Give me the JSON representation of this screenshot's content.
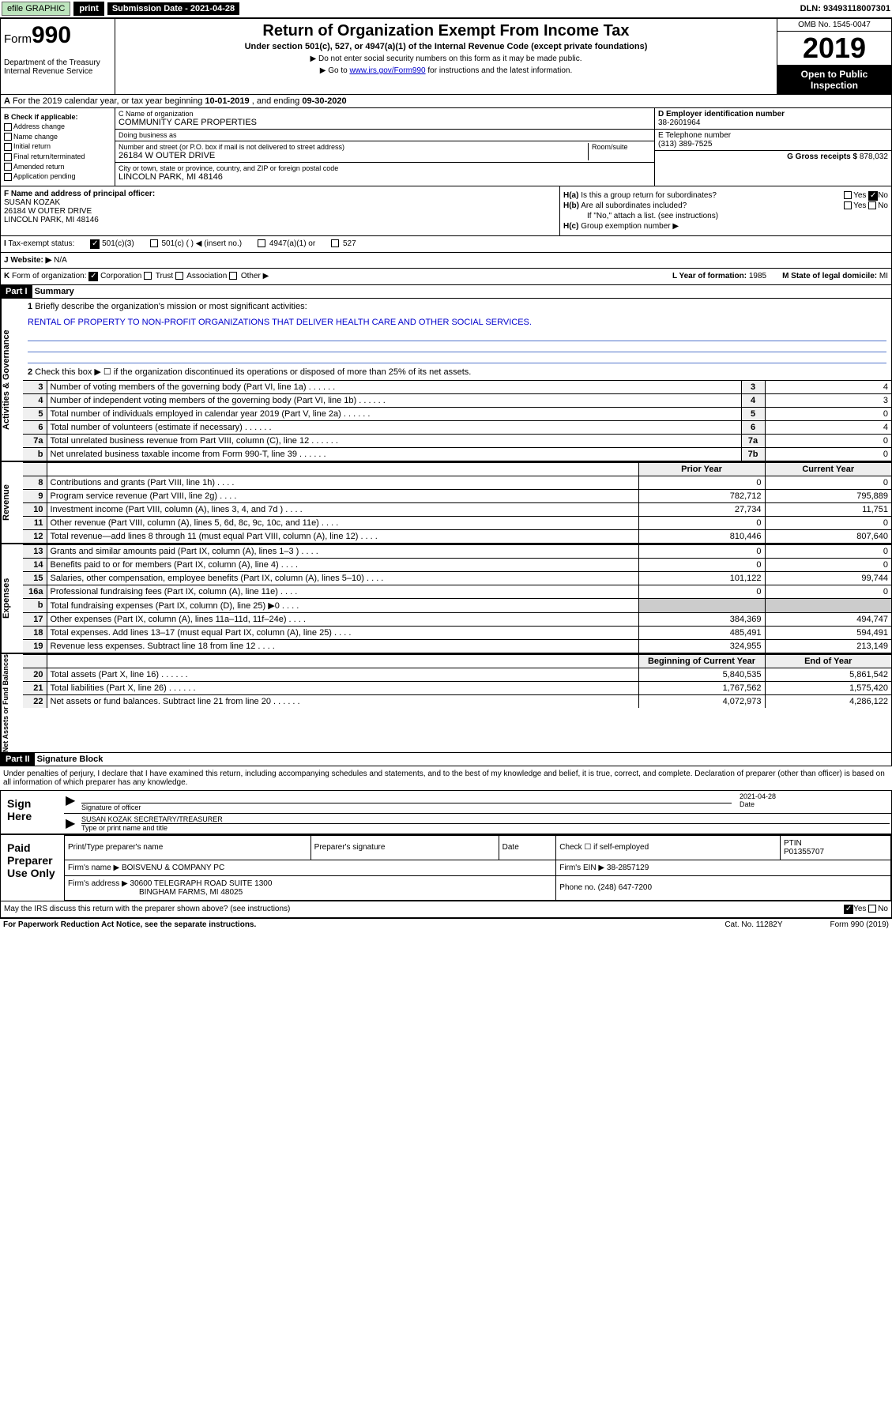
{
  "topbar": {
    "efile": "efile GRAPHIC",
    "print": "print",
    "sub_date_label": "Submission Date - 2021-04-28",
    "dln": "DLN: 93493118007301"
  },
  "header": {
    "form_prefix": "Form",
    "form_num": "990",
    "dept": "Department of the Treasury\nInternal Revenue Service",
    "title": "Return of Organization Exempt From Income Tax",
    "subtitle": "Under section 501(c), 527, or 4947(a)(1) of the Internal Revenue Code (except private foundations)",
    "note1": "▶ Do not enter social security numbers on this form as it may be made public.",
    "note2_a": "▶ Go to ",
    "note2_link": "www.irs.gov/Form990",
    "note2_b": " for instructions and the latest information.",
    "omb": "OMB No. 1545-0047",
    "year": "2019",
    "open_pub": "Open to Public Inspection"
  },
  "row_a": {
    "label_a": "A",
    "text": " For the 2019 calendar year, or tax year beginning ",
    "begin": "10-01-2019",
    "mid": " , and ending ",
    "end": "09-30-2020"
  },
  "col_b": {
    "label": "B Check if applicable:",
    "items": [
      "Address change",
      "Name change",
      "Initial return",
      "Final return/terminated",
      "Amended return",
      "Application pending"
    ]
  },
  "col_c": {
    "name_label": "C Name of organization",
    "name": "COMMUNITY CARE PROPERTIES",
    "dba_label": "Doing business as",
    "addr_label": "Number and street (or P.O. box if mail is not delivered to street address)",
    "room_label": "Room/suite",
    "addr": "26184 W OUTER DRIVE",
    "city_label": "City or town, state or province, country, and ZIP or foreign postal code",
    "city": "LINCOLN PARK, MI  48146"
  },
  "col_de": {
    "d_label": "D Employer identification number",
    "d_val": "38-2601964",
    "e_label": "E Telephone number",
    "e_val": "(313) 389-7525",
    "g_label": "G Gross receipts $ ",
    "g_val": "878,032"
  },
  "col_f": {
    "label": "F Name and address of principal officer:",
    "name": "SUSAN KOZAK",
    "addr1": "26184 W OUTER DRIVE",
    "addr2": "LINCOLN PARK, MI  48146"
  },
  "col_h": {
    "ha_label": "H(a)",
    "ha_text": "Is this a group return for subordinates?",
    "ha_yes": "Yes",
    "ha_no": "No",
    "hb_label": "H(b)",
    "hb_text": "Are all subordinates included?",
    "hb_yes": "Yes",
    "hb_no": "No",
    "hb_note": "If \"No,\" attach a list. (see instructions)",
    "hc_label": "H(c)",
    "hc_text": "Group exemption number ▶"
  },
  "row_tax": {
    "i": "I",
    "label": "Tax-exempt status:",
    "opt1": "501(c)(3)",
    "opt2": "501(c) (   ) ◀ (insert no.)",
    "opt3": "4947(a)(1) or",
    "opt4": "527"
  },
  "row_j": {
    "j": "J",
    "label": "Website: ▶",
    "val": "N/A"
  },
  "row_k": {
    "k": "K",
    "label": "Form of organization:",
    "corp": "Corporation",
    "trust": "Trust",
    "assoc": "Association",
    "other": "Other ▶",
    "l_label": "L Year of formation: ",
    "l_val": "1985",
    "m_label": "M State of legal domicile: ",
    "m_val": "MI"
  },
  "part1": {
    "hdr": "Part I",
    "title": "Summary",
    "vtab1": "Activities & Governance",
    "vtab2": "Revenue",
    "vtab3": "Expenses",
    "vtab4": "Net Assets or Fund Balances",
    "q1": "Briefly describe the organization's mission or most significant activities:",
    "q1_val": "RENTAL OF PROPERTY TO NON-PROFIT ORGANIZATIONS THAT DELIVER HEALTH CARE AND OTHER SOCIAL SERVICES.",
    "q2": "Check this box ▶ ☐ if the organization discontinued its operations or disposed of more than 25% of its net assets.",
    "rows": [
      {
        "n": "3",
        "t": "Number of voting members of the governing body (Part VI, line 1a)",
        "b": "3",
        "v": "4"
      },
      {
        "n": "4",
        "t": "Number of independent voting members of the governing body (Part VI, line 1b)",
        "b": "4",
        "v": "3"
      },
      {
        "n": "5",
        "t": "Total number of individuals employed in calendar year 2019 (Part V, line 2a)",
        "b": "5",
        "v": "0"
      },
      {
        "n": "6",
        "t": "Total number of volunteers (estimate if necessary)",
        "b": "6",
        "v": "4"
      },
      {
        "n": "7a",
        "t": "Total unrelated business revenue from Part VIII, column (C), line 12",
        "b": "7a",
        "v": "0"
      },
      {
        "n": "b",
        "t": "Net unrelated business taxable income from Form 990-T, line 39",
        "b": "7b",
        "v": "0"
      }
    ],
    "rev_hdr_prior": "Prior Year",
    "rev_hdr_curr": "Current Year",
    "rev_rows": [
      {
        "n": "8",
        "t": "Contributions and grants (Part VIII, line 1h)",
        "p": "0",
        "c": "0"
      },
      {
        "n": "9",
        "t": "Program service revenue (Part VIII, line 2g)",
        "p": "782,712",
        "c": "795,889"
      },
      {
        "n": "10",
        "t": "Investment income (Part VIII, column (A), lines 3, 4, and 7d )",
        "p": "27,734",
        "c": "11,751"
      },
      {
        "n": "11",
        "t": "Other revenue (Part VIII, column (A), lines 5, 6d, 8c, 9c, 10c, and 11e)",
        "p": "0",
        "c": "0"
      },
      {
        "n": "12",
        "t": "Total revenue—add lines 8 through 11 (must equal Part VIII, column (A), line 12)",
        "p": "810,446",
        "c": "807,640"
      }
    ],
    "exp_rows": [
      {
        "n": "13",
        "t": "Grants and similar amounts paid (Part IX, column (A), lines 1–3 )",
        "p": "0",
        "c": "0"
      },
      {
        "n": "14",
        "t": "Benefits paid to or for members (Part IX, column (A), line 4)",
        "p": "0",
        "c": "0"
      },
      {
        "n": "15",
        "t": "Salaries, other compensation, employee benefits (Part IX, column (A), lines 5–10)",
        "p": "101,122",
        "c": "99,744"
      },
      {
        "n": "16a",
        "t": "Professional fundraising fees (Part IX, column (A), line 11e)",
        "p": "0",
        "c": "0"
      },
      {
        "n": "b",
        "t": "Total fundraising expenses (Part IX, column (D), line 25) ▶0",
        "p": "",
        "c": "",
        "gray": true
      },
      {
        "n": "17",
        "t": "Other expenses (Part IX, column (A), lines 11a–11d, 11f–24e)",
        "p": "384,369",
        "c": "494,747"
      },
      {
        "n": "18",
        "t": "Total expenses. Add lines 13–17 (must equal Part IX, column (A), line 25)",
        "p": "485,491",
        "c": "594,491"
      },
      {
        "n": "19",
        "t": "Revenue less expenses. Subtract line 18 from line 12",
        "p": "324,955",
        "c": "213,149"
      }
    ],
    "net_hdr_begin": "Beginning of Current Year",
    "net_hdr_end": "End of Year",
    "net_rows": [
      {
        "n": "20",
        "t": "Total assets (Part X, line 16)",
        "p": "5,840,535",
        "c": "5,861,542"
      },
      {
        "n": "21",
        "t": "Total liabilities (Part X, line 26)",
        "p": "1,767,562",
        "c": "1,575,420"
      },
      {
        "n": "22",
        "t": "Net assets or fund balances. Subtract line 21 from line 20",
        "p": "4,072,973",
        "c": "4,286,122"
      }
    ]
  },
  "part2": {
    "hdr": "Part II",
    "title": "Signature Block",
    "text": "Under penalties of perjury, I declare that I have examined this return, including accompanying schedules and statements, and to the best of my knowledge and belief, it is true, correct, and complete. Declaration of preparer (other than officer) is based on all information of which preparer has any knowledge.",
    "sign_here": "Sign Here",
    "sig_officer": "Signature of officer",
    "sig_date": "2021-04-28",
    "sig_date_lbl": "Date",
    "sig_name": "SUSAN KOZAK  SECRETARY/TREASURER",
    "sig_name_lbl": "Type or print name and title",
    "paid": "Paid Preparer Use Only",
    "prep_name_lbl": "Print/Type preparer's name",
    "prep_sig_lbl": "Preparer's signature",
    "prep_date_lbl": "Date",
    "prep_check": "Check ☐ if self-employed",
    "ptin_lbl": "PTIN",
    "ptin": "P01355707",
    "firm_name_lbl": "Firm's name    ▶ ",
    "firm_name": "BOISVENU & COMPANY PC",
    "firm_ein_lbl": "Firm's EIN ▶ ",
    "firm_ein": "38-2857129",
    "firm_addr_lbl": "Firm's address ▶ ",
    "firm_addr": "30600 TELEGRAPH ROAD SUITE 1300",
    "firm_city": "BINGHAM FARMS, MI  48025",
    "phone_lbl": "Phone no. ",
    "phone": "(248) 647-7200",
    "discuss": "May the IRS discuss this return with the preparer shown above? (see instructions)",
    "discuss_yes": "Yes",
    "discuss_no": "No"
  },
  "footer": {
    "left": "For Paperwork Reduction Act Notice, see the separate instructions.",
    "mid": "Cat. No. 11282Y",
    "right": "Form 990 (2019)"
  }
}
